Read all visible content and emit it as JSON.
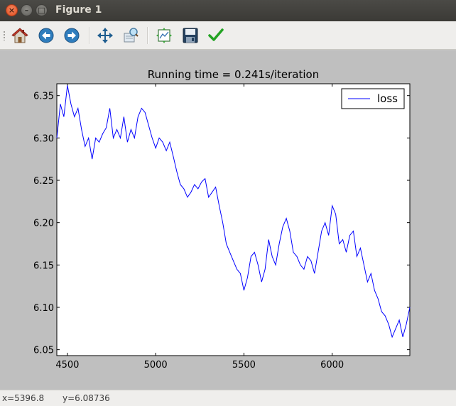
{
  "window": {
    "title": "Figure 1",
    "close_glyph": "×",
    "min_glyph": "–",
    "max_glyph": "□"
  },
  "toolbar": {
    "buttons": [
      {
        "icon": "home-icon",
        "tooltip": "Reset original view"
      },
      {
        "icon": "back-arrow-icon",
        "tooltip": "Back to previous view"
      },
      {
        "icon": "forward-arrow-icon",
        "tooltip": "Forward to next view"
      },
      {
        "icon": "pan-icon",
        "tooltip": "Pan axes"
      },
      {
        "icon": "zoom-icon",
        "tooltip": "Zoom to rectangle"
      },
      {
        "icon": "subplots-icon",
        "tooltip": "Configure subplots"
      },
      {
        "icon": "save-icon",
        "tooltip": "Save the figure"
      },
      {
        "icon": "checkmark-icon",
        "tooltip": "Edit curves"
      }
    ]
  },
  "status": {
    "x_text": "x=5396.8",
    "y_text": "y=6.08736"
  },
  "chart_data": {
    "type": "line",
    "title": "Running time = 0.241s/iteration",
    "xlabel": "",
    "ylabel": "",
    "xlim": [
      4440,
      6440
    ],
    "ylim": [
      6.043,
      6.364
    ],
    "xticks": [
      4500,
      5000,
      5500,
      6000
    ],
    "xtick_labels": [
      "4500",
      "5000",
      "5500",
      "6000"
    ],
    "yticks": [
      6.05,
      6.1,
      6.15,
      6.2,
      6.25,
      6.3,
      6.35
    ],
    "ytick_labels": [
      "6.05",
      "6.10",
      "6.15",
      "6.20",
      "6.25",
      "6.30",
      "6.35"
    ],
    "legend": {
      "placement": "top-right",
      "entries": [
        "loss"
      ]
    },
    "grid": false,
    "series": [
      {
        "name": "loss",
        "color": "#0000ff",
        "x": [
          4440,
          4460,
          4480,
          4500,
          4520,
          4540,
          4560,
          4580,
          4600,
          4620,
          4640,
          4660,
          4680,
          4700,
          4720,
          4740,
          4760,
          4780,
          4800,
          4820,
          4840,
          4860,
          4880,
          4900,
          4920,
          4940,
          4960,
          4980,
          5000,
          5020,
          5040,
          5060,
          5080,
          5100,
          5120,
          5140,
          5160,
          5180,
          5200,
          5220,
          5240,
          5260,
          5280,
          5300,
          5320,
          5340,
          5360,
          5380,
          5400,
          5420,
          5440,
          5460,
          5480,
          5500,
          5520,
          5540,
          5560,
          5580,
          5600,
          5620,
          5640,
          5660,
          5680,
          5700,
          5720,
          5740,
          5760,
          5780,
          5800,
          5820,
          5840,
          5860,
          5880,
          5900,
          5920,
          5940,
          5960,
          5980,
          6000,
          6020,
          6040,
          6060,
          6080,
          6100,
          6120,
          6140,
          6160,
          6180,
          6200,
          6220,
          6240,
          6260,
          6280,
          6300,
          6320,
          6340,
          6360,
          6380,
          6400,
          6420,
          6440
        ],
        "y": [
          6.3,
          6.34,
          6.325,
          6.362,
          6.34,
          6.325,
          6.335,
          6.31,
          6.29,
          6.3,
          6.275,
          6.3,
          6.295,
          6.305,
          6.312,
          6.335,
          6.3,
          6.31,
          6.3,
          6.325,
          6.295,
          6.31,
          6.3,
          6.325,
          6.335,
          6.33,
          6.315,
          6.3,
          6.288,
          6.3,
          6.295,
          6.285,
          6.295,
          6.278,
          6.26,
          6.245,
          6.24,
          6.23,
          6.236,
          6.245,
          6.24,
          6.248,
          6.252,
          6.23,
          6.236,
          6.242,
          6.22,
          6.2,
          6.175,
          6.165,
          6.155,
          6.145,
          6.14,
          6.12,
          6.135,
          6.16,
          6.165,
          6.15,
          6.13,
          6.145,
          6.18,
          6.16,
          6.15,
          6.175,
          6.195,
          6.205,
          6.19,
          6.165,
          6.16,
          6.15,
          6.145,
          6.16,
          6.155,
          6.14,
          6.165,
          6.19,
          6.2,
          6.185,
          6.22,
          6.21,
          6.175,
          6.18,
          6.165,
          6.185,
          6.19,
          6.16,
          6.17,
          6.15,
          6.13,
          6.14,
          6.12,
          6.11,
          6.095,
          6.09,
          6.08,
          6.065,
          6.075,
          6.085,
          6.065,
          6.08,
          6.1
        ]
      }
    ]
  }
}
